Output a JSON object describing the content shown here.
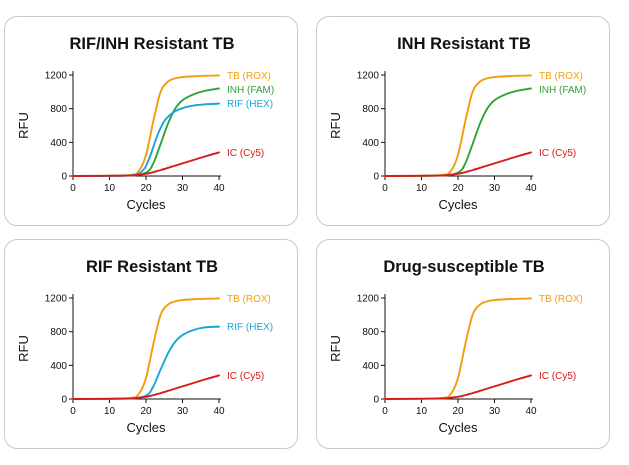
{
  "colors": {
    "tb": "#f39c0c",
    "inh": "#2fa336",
    "rif": "#1aa3db",
    "ic": "#d71a1a",
    "panel_border": "#c9c9c9",
    "text": "#111111"
  },
  "chart_data": [
    {
      "type": "line",
      "title": "RIF/INH Resistant TB",
      "xlabel": "Cycles",
      "ylabel": "RFU",
      "xlim": [
        0,
        40
      ],
      "ylim": [
        0,
        1200
      ],
      "xticks": [
        "0",
        "10",
        "20",
        "30",
        "40"
      ],
      "yticks": [
        "0",
        "400",
        "800",
        "1200"
      ],
      "series": [
        {
          "name": "TB (ROX)",
          "color": "tb",
          "x": [
            0,
            15,
            18,
            20,
            22,
            24,
            26,
            28,
            30,
            33,
            36,
            40
          ],
          "y": [
            0,
            10,
            60,
            250,
            650,
            1000,
            1120,
            1160,
            1175,
            1185,
            1190,
            1195
          ]
        },
        {
          "name": "INH (FAM)",
          "color": "inh",
          "x": [
            0,
            15,
            20,
            22,
            24,
            26,
            28,
            30,
            33,
            36,
            40
          ],
          "y": [
            0,
            5,
            40,
            150,
            380,
            620,
            800,
            900,
            970,
            1010,
            1040
          ]
        },
        {
          "name": "RIF (HEX)",
          "color": "rif",
          "x": [
            0,
            15,
            19,
            21,
            23,
            25,
            27,
            29,
            32,
            36,
            40
          ],
          "y": [
            0,
            5,
            60,
            220,
            470,
            650,
            740,
            790,
            830,
            850,
            860
          ]
        },
        {
          "name": "IC (Cy5)",
          "color": "ic",
          "x": [
            0,
            15,
            18,
            21,
            24,
            27,
            30,
            33,
            36,
            40
          ],
          "y": [
            0,
            5,
            15,
            35,
            70,
            110,
            150,
            190,
            230,
            280
          ]
        }
      ]
    },
    {
      "type": "line",
      "title": "INH Resistant TB",
      "xlabel": "Cycles",
      "ylabel": "RFU",
      "xlim": [
        0,
        40
      ],
      "ylim": [
        0,
        1200
      ],
      "xticks": [
        "0",
        "10",
        "20",
        "30",
        "40"
      ],
      "yticks": [
        "0",
        "400",
        "800",
        "1200"
      ],
      "series": [
        {
          "name": "TB (ROX)",
          "color": "tb",
          "x": [
            0,
            15,
            18,
            20,
            22,
            24,
            26,
            28,
            30,
            33,
            36,
            40
          ],
          "y": [
            0,
            10,
            60,
            250,
            650,
            1000,
            1120,
            1160,
            1175,
            1185,
            1190,
            1195
          ]
        },
        {
          "name": "INH (FAM)",
          "color": "inh",
          "x": [
            0,
            15,
            20,
            22,
            24,
            26,
            28,
            30,
            33,
            36,
            40
          ],
          "y": [
            0,
            5,
            40,
            150,
            380,
            620,
            800,
            900,
            970,
            1010,
            1040
          ]
        },
        {
          "name": "IC (Cy5)",
          "color": "ic",
          "x": [
            0,
            15,
            18,
            21,
            24,
            27,
            30,
            33,
            36,
            40
          ],
          "y": [
            0,
            5,
            15,
            35,
            70,
            110,
            150,
            190,
            230,
            280
          ]
        }
      ]
    },
    {
      "type": "line",
      "title": "RIF Resistant TB",
      "xlabel": "Cycles",
      "ylabel": "RFU",
      "xlim": [
        0,
        40
      ],
      "ylim": [
        0,
        1200
      ],
      "xticks": [
        "0",
        "10",
        "20",
        "30",
        "40"
      ],
      "yticks": [
        "0",
        "400",
        "800",
        "1200"
      ],
      "series": [
        {
          "name": "TB (ROX)",
          "color": "tb",
          "x": [
            0,
            15,
            18,
            20,
            22,
            24,
            26,
            28,
            30,
            33,
            36,
            40
          ],
          "y": [
            0,
            10,
            60,
            250,
            650,
            1000,
            1120,
            1160,
            1175,
            1185,
            1190,
            1195
          ]
        },
        {
          "name": "RIF (HEX)",
          "color": "rif",
          "x": [
            0,
            15,
            20,
            22,
            24,
            26,
            28,
            30,
            33,
            36,
            40
          ],
          "y": [
            0,
            5,
            40,
            150,
            350,
            540,
            680,
            760,
            820,
            850,
            860
          ]
        },
        {
          "name": "IC (Cy5)",
          "color": "ic",
          "x": [
            0,
            15,
            18,
            21,
            24,
            27,
            30,
            33,
            36,
            40
          ],
          "y": [
            0,
            5,
            15,
            35,
            70,
            110,
            150,
            190,
            230,
            280
          ]
        }
      ]
    },
    {
      "type": "line",
      "title": "Drug-susceptible TB",
      "xlabel": "Cycles",
      "ylabel": "RFU",
      "xlim": [
        0,
        40
      ],
      "ylim": [
        0,
        1200
      ],
      "xticks": [
        "0",
        "10",
        "20",
        "30",
        "40"
      ],
      "yticks": [
        "0",
        "400",
        "800",
        "1200"
      ],
      "series": [
        {
          "name": "TB (ROX)",
          "color": "tb",
          "x": [
            0,
            15,
            18,
            20,
            22,
            24,
            26,
            28,
            30,
            33,
            36,
            40
          ],
          "y": [
            0,
            10,
            60,
            250,
            650,
            1000,
            1120,
            1160,
            1175,
            1185,
            1190,
            1195
          ]
        },
        {
          "name": "IC (Cy5)",
          "color": "ic",
          "x": [
            0,
            15,
            18,
            21,
            24,
            27,
            30,
            33,
            36,
            40
          ],
          "y": [
            0,
            5,
            15,
            35,
            70,
            110,
            150,
            190,
            230,
            280
          ]
        }
      ]
    }
  ]
}
